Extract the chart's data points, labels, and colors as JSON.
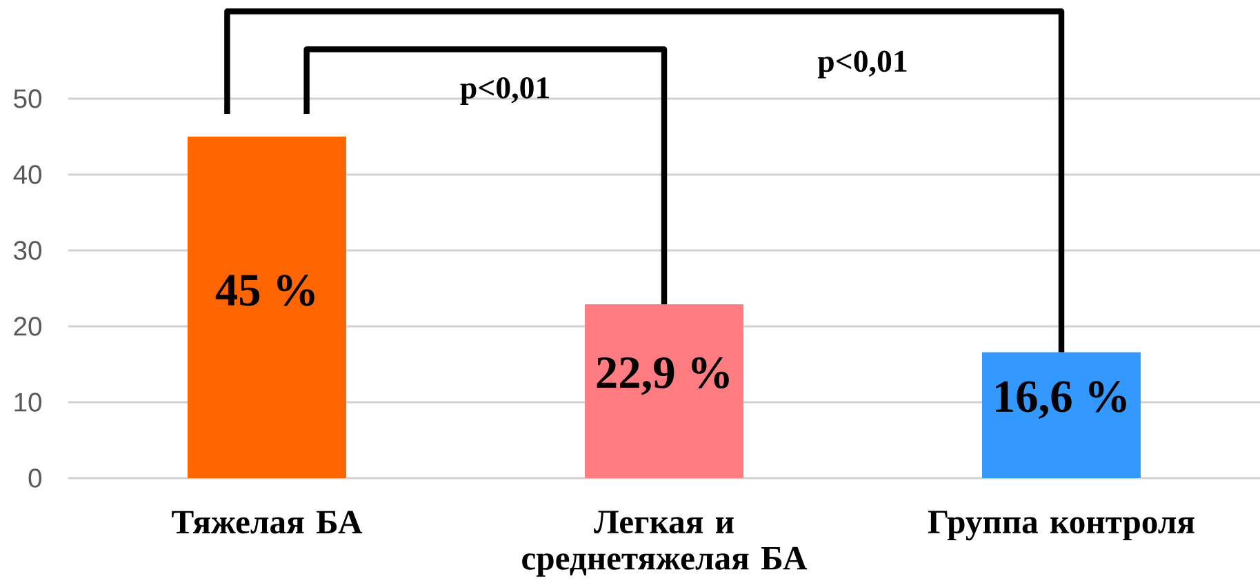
{
  "chart_data": {
    "type": "bar",
    "categories": [
      "Тяжелая БА",
      "Легкая и среднетяжелая БА",
      "Группа контроля"
    ],
    "values": [
      45,
      22.9,
      16.6
    ],
    "colors": [
      "#ff6600",
      "#ff7c80",
      "#3399ff"
    ],
    "value_labels": [
      "45 %",
      "22,9 %",
      "16,6 %"
    ],
    "ylim": [
      0,
      50
    ],
    "yticks": [
      0,
      10,
      20,
      30,
      40,
      50
    ],
    "grid": "y",
    "annotations": [
      "p<0,01",
      "p<0,01"
    ]
  }
}
